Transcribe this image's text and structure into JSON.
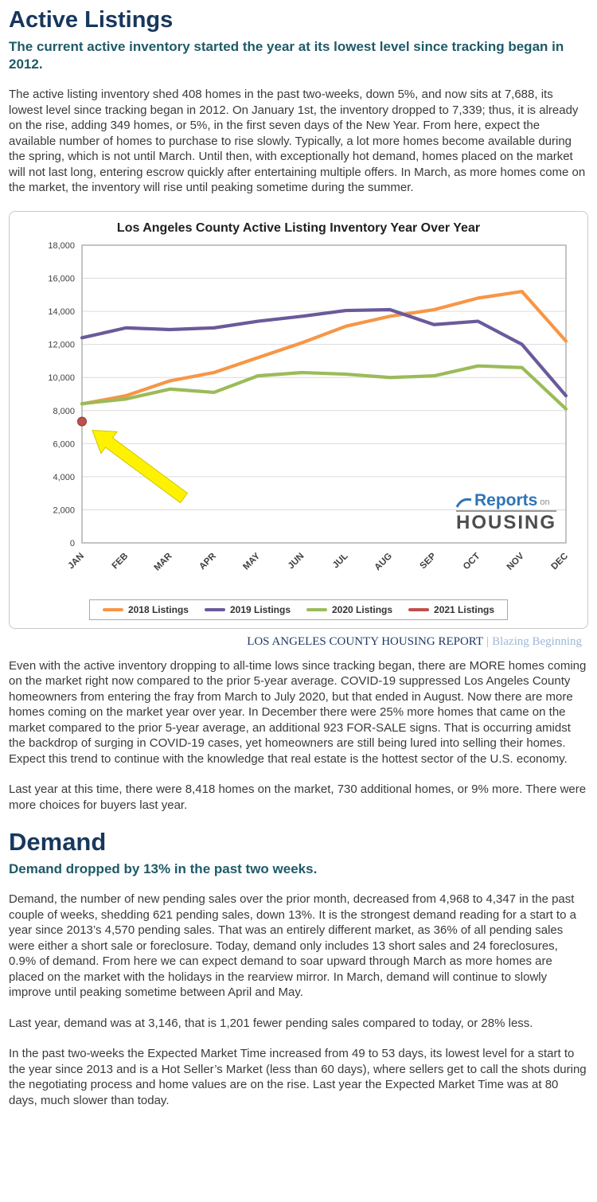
{
  "active_listings": {
    "title": "Active Listings",
    "subtitle": "The current active inventory started the year at its lowest level since tracking began in 2012.",
    "paragraphs": [
      "The active listing inventory shed 408 homes in the past two-weeks, down 5%, and now sits at 7,688, its lowest level since tracking began in 2012. On January 1st, the inventory dropped to 7,339; thus, it is already on the rise, adding 349 homes, or 5%, in the first seven days of the New Year. From here, expect the available number of homes to purchase to rise slowly. Typically, a lot more homes become available during the spring, which is not until March. Until then, with exceptionally hot demand, homes placed on the market will not last long, entering escrow quickly after entertaining multiple offers. In March, as more homes come on the market, the inventory will rise until peaking sometime during the summer.",
      "Even with the active inventory dropping to all-time lows since tracking began, there are MORE homes coming on the market right now compared to the prior 5-year average. COVID-19 suppressed Los Angeles County homeowners from entering the fray from March to July 2020, but that ended in August. Now there are more homes coming on the market year over year. In December there were 25% more homes that came on the market compared to the prior 5-year average, an additional 923 FOR-SALE signs. That is occurring amidst the backdrop of surging in COVID-19 cases, yet homeowners are still being lured into selling their homes. Expect this trend to continue with the knowledge that real estate is the hottest sector of the U.S. economy.",
      "Last year at this time, there were 8,418 homes on the market, 730 additional homes, or 9% more. There were more choices for buyers last year."
    ]
  },
  "chart_caption": {
    "report_title": "LOS ANGELES COUNTY HOUSING REPORT",
    "separator": "|",
    "edition": "Blazing Beginning"
  },
  "demand": {
    "title": "Demand",
    "subtitle": "Demand dropped by 13% in the past two weeks.",
    "paragraphs": [
      "Demand, the number of new pending sales over the prior month, decreased from 4,968 to 4,347 in the past couple of weeks, shedding 621 pending sales, down 13%. It is the strongest demand reading for a start to a year since 2013’s 4,570 pending sales. That was an entirely different market, as 36% of all pending sales were either a short sale or foreclosure. Today, demand only includes 13 short sales and 24 foreclosures, 0.9% of demand. From here we can expect demand to soar upward through March as more homes are placed on the market with the holidays in the rearview mirror. In March, demand will continue to slowly improve until peaking sometime between April and May.",
      "Last year, demand was at 3,146, that is 1,201 fewer pending sales compared to today, or 28% less.",
      "In the past two-weeks the Expected Market Time increased from 49 to 53 days, its lowest level for a start to the year since 2013 and is a Hot Seller’s Market (less than 60 days), where sellers get to call the shots during the negotiating process and home values are on the rise. Last year the Expected Market Time was at 80 days, much slower than today."
    ]
  },
  "chart_data": {
    "type": "line",
    "title": "Los Angeles County Active Listing Inventory Year Over Year",
    "categories": [
      "JAN",
      "FEB",
      "MAR",
      "APR",
      "MAY",
      "JUN",
      "JUL",
      "AUG",
      "SEP",
      "OCT",
      "NOV",
      "DEC"
    ],
    "series": [
      {
        "name": "2018 Listings",
        "color": "#F79646",
        "values": [
          8400,
          8900,
          9800,
          10300,
          11200,
          12100,
          13100,
          13700,
          14100,
          14800,
          15200,
          12200
        ]
      },
      {
        "name": "2019 Listings",
        "color": "#6A5A9B",
        "values": [
          12400,
          13000,
          12900,
          13000,
          13400,
          13700,
          14050,
          14100,
          13200,
          13400,
          12000,
          8900
        ]
      },
      {
        "name": "2020 Listings",
        "color": "#9BBB59",
        "values": [
          8418,
          8700,
          9300,
          9100,
          10100,
          10300,
          10200,
          10000,
          10100,
          10700,
          10600,
          8100
        ]
      },
      {
        "name": "2021 Listings",
        "color": "#C0504D",
        "values": [
          7339
        ]
      }
    ],
    "ylim": [
      0,
      18000
    ],
    "ytick_step": 2000,
    "grid": true,
    "legend_position": "bottom",
    "annotation": {
      "type": "block-arrow",
      "color": "#FFF200",
      "points_to": "2021 Listings JAN value 7,339"
    },
    "watermark": {
      "reports": "Reports",
      "on": "on",
      "housing": "HOUSING"
    }
  }
}
